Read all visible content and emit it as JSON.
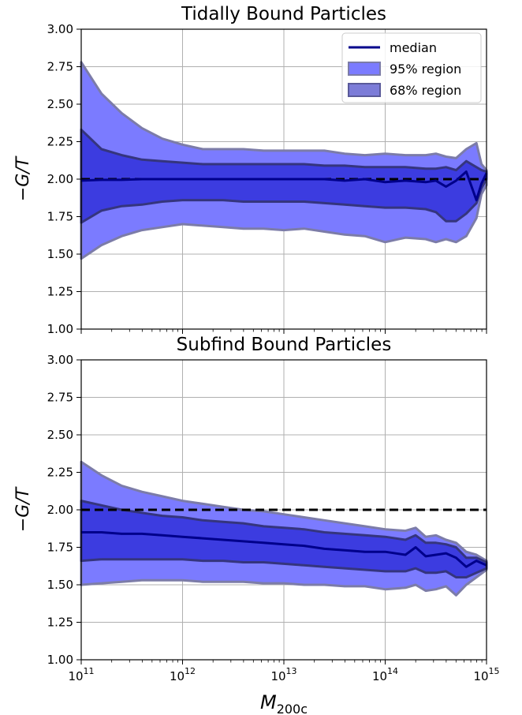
{
  "colors": {
    "median": "#00008b",
    "band95": "#7b7bff",
    "band95_edge": "#7c7ca8",
    "band68": "#3c3ce0",
    "band68_edge": "#35357e",
    "reference": "#000000",
    "grid": "#b0b0b0"
  },
  "legend": {
    "placement": "top-right",
    "entries": [
      "median",
      "95% region",
      "68% region"
    ]
  },
  "chart_data": [
    {
      "type": "line",
      "title": "Tidally Bound Particles",
      "xlabel": "",
      "ylabel": "−G/T",
      "xscale": "log",
      "xlim": [
        100000000000.0,
        1000000000000000.0
      ],
      "ylim": [
        1.0,
        3.0
      ],
      "yticks": [
        "1.00",
        "1.25",
        "1.50",
        "1.75",
        "2.00",
        "2.25",
        "2.50",
        "2.75",
        "3.00"
      ],
      "xticks": [],
      "reference_line": 2.0,
      "grid": true,
      "series": [
        {
          "name": "median",
          "x": [
            11.0,
            11.2,
            11.4,
            11.6,
            11.8,
            12.0,
            12.2,
            12.4,
            12.6,
            12.8,
            13.0,
            13.2,
            13.4,
            13.6,
            13.8,
            14.0,
            14.2,
            14.4,
            14.5,
            14.6,
            14.7,
            14.8,
            14.9,
            14.95,
            15.0
          ],
          "y": [
            1.99,
            1.995,
            1.995,
            2.0,
            2.0,
            2.0,
            2.0,
            2.0,
            2.0,
            2.0,
            2.0,
            2.0,
            2.0,
            1.99,
            2.0,
            1.98,
            1.99,
            1.98,
            1.99,
            1.95,
            1.99,
            2.05,
            1.86,
            1.97,
            2.04
          ]
        },
        {
          "name": "95% region",
          "x": [
            11.0,
            11.2,
            11.4,
            11.6,
            11.8,
            12.0,
            12.2,
            12.4,
            12.6,
            12.8,
            13.0,
            13.2,
            13.4,
            13.6,
            13.8,
            14.0,
            14.2,
            14.4,
            14.5,
            14.6,
            14.7,
            14.8,
            14.9,
            14.95,
            15.0
          ],
          "low": [
            1.47,
            1.56,
            1.62,
            1.66,
            1.68,
            1.7,
            1.69,
            1.68,
            1.67,
            1.67,
            1.66,
            1.67,
            1.65,
            1.63,
            1.62,
            1.58,
            1.61,
            1.6,
            1.58,
            1.6,
            1.58,
            1.62,
            1.74,
            1.9,
            1.96
          ],
          "high": [
            2.78,
            2.57,
            2.44,
            2.34,
            2.27,
            2.23,
            2.2,
            2.2,
            2.2,
            2.19,
            2.19,
            2.19,
            2.19,
            2.17,
            2.16,
            2.17,
            2.16,
            2.16,
            2.17,
            2.15,
            2.14,
            2.2,
            2.24,
            2.1,
            2.06
          ]
        },
        {
          "name": "68% region",
          "x": [
            11.0,
            11.2,
            11.4,
            11.6,
            11.8,
            12.0,
            12.2,
            12.4,
            12.6,
            12.8,
            13.0,
            13.2,
            13.4,
            13.6,
            13.8,
            14.0,
            14.2,
            14.4,
            14.5,
            14.6,
            14.7,
            14.8,
            14.9,
            14.95,
            15.0
          ],
          "low": [
            1.71,
            1.79,
            1.82,
            1.83,
            1.85,
            1.86,
            1.86,
            1.86,
            1.85,
            1.85,
            1.85,
            1.85,
            1.84,
            1.83,
            1.82,
            1.81,
            1.81,
            1.8,
            1.78,
            1.72,
            1.72,
            1.77,
            1.84,
            1.94,
            2.0
          ],
          "high": [
            2.33,
            2.2,
            2.16,
            2.13,
            2.12,
            2.11,
            2.1,
            2.1,
            2.1,
            2.1,
            2.1,
            2.1,
            2.09,
            2.09,
            2.08,
            2.08,
            2.08,
            2.07,
            2.07,
            2.08,
            2.06,
            2.12,
            2.08,
            2.06,
            2.05
          ]
        }
      ]
    },
    {
      "type": "line",
      "title": "Subfind Bound Particles",
      "xlabel": "M200c",
      "ylabel": "−G/T",
      "xscale": "log",
      "xlim": [
        100000000000.0,
        1000000000000000.0
      ],
      "ylim": [
        1.0,
        3.0
      ],
      "yticks": [
        "1.00",
        "1.25",
        "1.50",
        "1.75",
        "2.00",
        "2.25",
        "2.50",
        "2.75",
        "3.00"
      ],
      "xticks": [
        "11",
        "12",
        "13",
        "14",
        "15"
      ],
      "reference_line": 2.0,
      "grid": true,
      "series": [
        {
          "name": "median",
          "x": [
            11.0,
            11.2,
            11.4,
            11.6,
            11.8,
            12.0,
            12.2,
            12.4,
            12.6,
            12.8,
            13.0,
            13.2,
            13.4,
            13.6,
            13.8,
            14.0,
            14.2,
            14.3,
            14.4,
            14.5,
            14.6,
            14.7,
            14.8,
            14.9,
            15.0
          ],
          "y": [
            1.85,
            1.85,
            1.84,
            1.84,
            1.83,
            1.82,
            1.81,
            1.8,
            1.79,
            1.78,
            1.77,
            1.76,
            1.74,
            1.73,
            1.72,
            1.72,
            1.7,
            1.75,
            1.69,
            1.7,
            1.71,
            1.68,
            1.62,
            1.66,
            1.63
          ]
        },
        {
          "name": "95% region",
          "x": [
            11.0,
            11.2,
            11.4,
            11.6,
            11.8,
            12.0,
            12.2,
            12.4,
            12.6,
            12.8,
            13.0,
            13.2,
            13.4,
            13.6,
            13.8,
            14.0,
            14.2,
            14.3,
            14.4,
            14.5,
            14.6,
            14.7,
            14.8,
            14.9,
            15.0
          ],
          "low": [
            1.5,
            1.51,
            1.52,
            1.53,
            1.53,
            1.53,
            1.52,
            1.52,
            1.52,
            1.51,
            1.51,
            1.5,
            1.5,
            1.49,
            1.49,
            1.47,
            1.48,
            1.5,
            1.46,
            1.47,
            1.49,
            1.43,
            1.5,
            1.55,
            1.6
          ],
          "high": [
            2.32,
            2.23,
            2.16,
            2.12,
            2.09,
            2.06,
            2.04,
            2.02,
            2.0,
            1.99,
            1.97,
            1.95,
            1.93,
            1.91,
            1.89,
            1.87,
            1.86,
            1.88,
            1.82,
            1.83,
            1.8,
            1.78,
            1.72,
            1.7,
            1.66
          ]
        },
        {
          "name": "68% region",
          "x": [
            11.0,
            11.2,
            11.4,
            11.6,
            11.8,
            12.0,
            12.2,
            12.4,
            12.6,
            12.8,
            13.0,
            13.2,
            13.4,
            13.6,
            13.8,
            14.0,
            14.2,
            14.3,
            14.4,
            14.5,
            14.6,
            14.7,
            14.8,
            14.9,
            15.0
          ],
          "low": [
            1.66,
            1.67,
            1.67,
            1.67,
            1.67,
            1.67,
            1.66,
            1.66,
            1.65,
            1.65,
            1.64,
            1.63,
            1.62,
            1.61,
            1.6,
            1.59,
            1.59,
            1.61,
            1.58,
            1.58,
            1.59,
            1.55,
            1.55,
            1.58,
            1.61
          ],
          "high": [
            2.06,
            2.03,
            2.0,
            1.98,
            1.96,
            1.95,
            1.93,
            1.92,
            1.91,
            1.89,
            1.88,
            1.87,
            1.85,
            1.84,
            1.83,
            1.82,
            1.8,
            1.83,
            1.78,
            1.78,
            1.77,
            1.75,
            1.68,
            1.68,
            1.65
          ]
        }
      ]
    }
  ]
}
